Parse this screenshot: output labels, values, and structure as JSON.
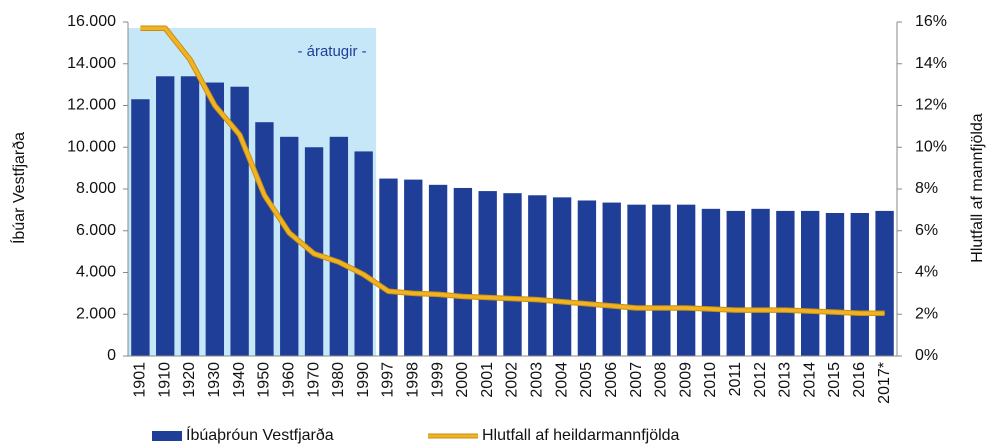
{
  "chart_data": {
    "type": "bar",
    "annotation": "- áratugir -",
    "y_label": "Íbúar Vestfjarða",
    "y2_label": "Hlutfall af mannfjölda",
    "categories": [
      "1901",
      "1910",
      "1920",
      "1930",
      "1940",
      "1950",
      "1960",
      "1970",
      "1980",
      "1990",
      "1997",
      "1998",
      "1999",
      "2000",
      "2001",
      "2002",
      "2003",
      "2004",
      "2005",
      "2006",
      "2007",
      "2008",
      "2009",
      "2010",
      "2011",
      "2012",
      "2013",
      "2014",
      "2015",
      "2016",
      "2017*"
    ],
    "series": [
      {
        "name": "Íbúaþróun Vestfjarða",
        "type": "bar",
        "axis": "y",
        "color": "#1f3e98",
        "values": [
          12300,
          13400,
          13400,
          13100,
          12900,
          11200,
          10500,
          10000,
          10500,
          9800,
          8500,
          8450,
          8200,
          8050,
          7900,
          7800,
          7700,
          7600,
          7450,
          7350,
          7250,
          7250,
          7250,
          7050,
          6950,
          7050,
          6950,
          6950,
          6850,
          6850,
          6950
        ]
      },
      {
        "name": "Hlutfall af heildarmannfjölda",
        "type": "line",
        "axis": "y2",
        "color": "#f0b323",
        "values": [
          15.7,
          15.7,
          14.2,
          12.0,
          10.6,
          7.7,
          5.9,
          4.9,
          4.5,
          3.9,
          3.1,
          3.0,
          2.95,
          2.85,
          2.8,
          2.75,
          2.7,
          2.6,
          2.5,
          2.4,
          2.3,
          2.3,
          2.3,
          2.25,
          2.2,
          2.2,
          2.2,
          2.15,
          2.1,
          2.05,
          2.05
        ]
      }
    ],
    "ylim": [
      0,
      16000
    ],
    "yticks": [
      0,
      {
        "value": 2000,
        "label": "2.000"
      },
      {
        "value": 4000,
        "label": "4.000"
      },
      {
        "value": 6000,
        "label": "6.000"
      },
      {
        "value": 8000,
        "label": "8.000"
      },
      {
        "value": 10000,
        "label": "10.000"
      },
      {
        "value": 12000,
        "label": "12.000"
      },
      {
        "value": 14000,
        "label": "14.000"
      },
      {
        "value": 16000,
        "label": "16.000"
      }
    ],
    "y2lim": [
      0,
      16
    ],
    "y2ticks": [
      {
        "value": 0,
        "label": "0%"
      },
      {
        "value": 2,
        "label": "2%"
      },
      {
        "value": 4,
        "label": "4%"
      },
      {
        "value": 6,
        "label": "6%"
      },
      {
        "value": 8,
        "label": "8%"
      },
      {
        "value": 10,
        "label": "10%"
      },
      {
        "value": 12,
        "label": "12%"
      },
      {
        "value": 14,
        "label": "14%"
      },
      {
        "value": 16,
        "label": "16%"
      }
    ],
    "highlight_color": "#c6e7f8",
    "legend": "bottom"
  }
}
